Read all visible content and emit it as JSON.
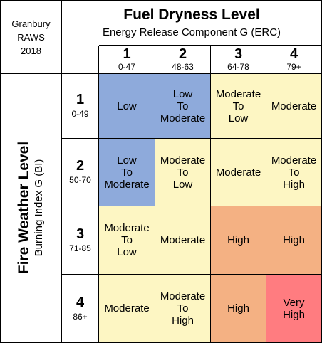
{
  "station": {
    "line1": "Granbury",
    "line2": "RAWS",
    "line3": "2018"
  },
  "header": {
    "title": "Fuel Dryness Level",
    "subtitle": "Energy Release Component G (ERC)"
  },
  "columns": [
    {
      "num": "1",
      "range": "0-47"
    },
    {
      "num": "2",
      "range": "48-63"
    },
    {
      "num": "3",
      "range": "64-78"
    },
    {
      "num": "4",
      "range": "79+"
    }
  ],
  "side": {
    "title": "Fire Weather Level",
    "subtitle": "Burning Index G (BI)"
  },
  "rows": [
    {
      "num": "1",
      "range": "0-49"
    },
    {
      "num": "2",
      "range": "50-70"
    },
    {
      "num": "3",
      "range": "71-85"
    },
    {
      "num": "4",
      "range": "86+"
    }
  ],
  "levels": {
    "low": "#8eaadb",
    "moderate": "#fdf6c3",
    "high": "#f4b183",
    "very_high": "#ff7c80"
  },
  "matrix": [
    [
      {
        "text": "Low",
        "level": "low"
      },
      {
        "text": "Low\nTo\nModerate",
        "level": "low"
      },
      {
        "text": "Moderate\nTo\nLow",
        "level": "moderate"
      },
      {
        "text": "Moderate",
        "level": "moderate"
      }
    ],
    [
      {
        "text": "Low\nTo\nModerate",
        "level": "low"
      },
      {
        "text": "Moderate\nTo\nLow",
        "level": "moderate"
      },
      {
        "text": "Moderate",
        "level": "moderate"
      },
      {
        "text": "Moderate\nTo\nHigh",
        "level": "moderate"
      }
    ],
    [
      {
        "text": "Moderate\nTo\nLow",
        "level": "moderate"
      },
      {
        "text": "Moderate",
        "level": "moderate"
      },
      {
        "text": "High",
        "level": "high"
      },
      {
        "text": "High",
        "level": "high"
      }
    ],
    [
      {
        "text": "Moderate",
        "level": "moderate"
      },
      {
        "text": "Moderate\nTo\nHigh",
        "level": "moderate"
      },
      {
        "text": "High",
        "level": "high"
      },
      {
        "text": "Very\nHigh",
        "level": "veryhigh"
      }
    ]
  ]
}
